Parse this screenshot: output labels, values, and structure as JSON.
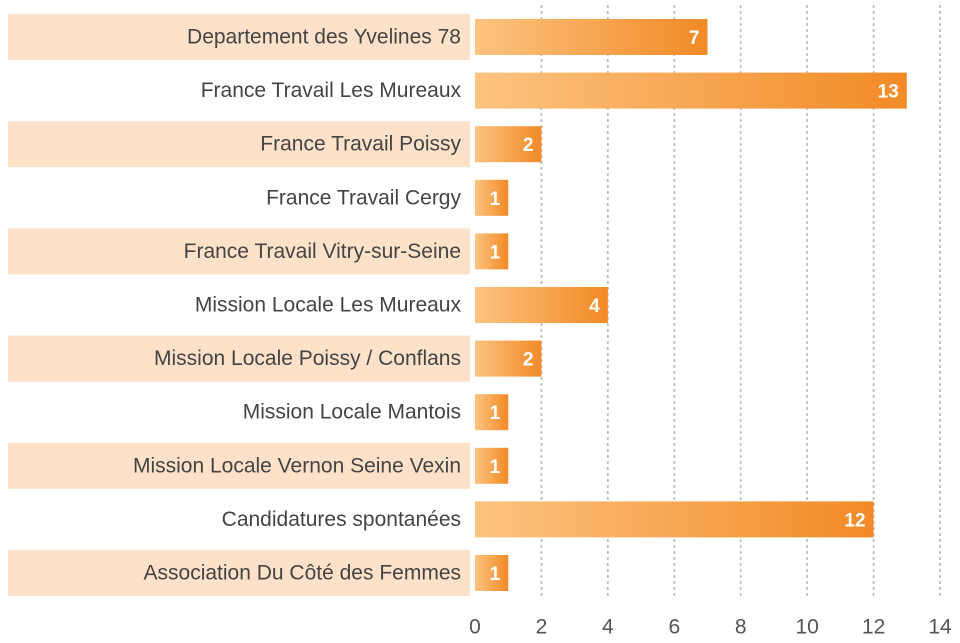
{
  "chart_data": {
    "type": "barh",
    "categories": [
      "Departement des Yvelines 78",
      "France Travail Les Mureaux",
      "France Travail Poissy",
      "France Travail Cergy",
      "France Travail Vitry-sur-Seine",
      "Mission Locale Les Mureaux",
      "Mission Locale Poissy / Conflans",
      "Mission Locale Mantois",
      "Mission Locale Vernon Seine Vexin",
      "Candidatures spontanées",
      "Association Du Côté des Femmes"
    ],
    "values": [
      7,
      13,
      2,
      1,
      1,
      4,
      2,
      1,
      1,
      12,
      1
    ],
    "gradient": [
      "#fcc480",
      "#f28a26"
    ],
    "xlim": [
      0,
      14
    ],
    "xticks": [
      0,
      2,
      4,
      6,
      8,
      10,
      12,
      14
    ],
    "grid": true
  }
}
